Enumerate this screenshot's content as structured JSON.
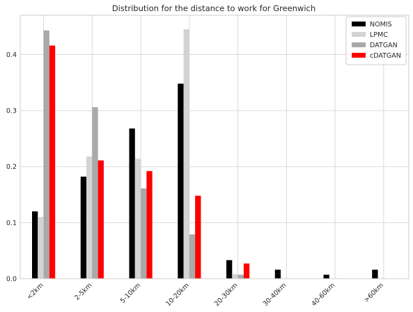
{
  "chart_data": {
    "type": "bar",
    "title": "Distribution for the distance to work for Greenwich",
    "xlabel": "",
    "ylabel": "",
    "categories": [
      "<2km",
      "2-5km",
      "5-10km",
      "10-20km",
      "20-30km",
      "30-40km",
      "40-60km",
      ">60km"
    ],
    "yticks": [
      "0.0",
      "0.1",
      "0.2",
      "0.3",
      "0.4"
    ],
    "ylim": [
      0,
      0.47
    ],
    "grid": true,
    "legend_position": "top-right",
    "series": [
      {
        "name": "NOMIS",
        "color": "#000000",
        "values": [
          0.12,
          0.182,
          0.268,
          0.348,
          0.033,
          0.016,
          0.007,
          0.016
        ]
      },
      {
        "name": "LPMC",
        "color": "#d3d3d3",
        "values": [
          0.11,
          0.218,
          0.214,
          0.445,
          0.008,
          0.0,
          0.0,
          0.0
        ]
      },
      {
        "name": "DATGAN",
        "color": "#a9a9a9",
        "values": [
          0.443,
          0.306,
          0.161,
          0.079,
          0.007,
          0.0,
          0.0,
          0.0
        ]
      },
      {
        "name": "cDATGAN",
        "color": "#ff0000",
        "values": [
          0.416,
          0.211,
          0.192,
          0.148,
          0.027,
          0.0,
          0.0,
          0.0
        ]
      }
    ]
  }
}
